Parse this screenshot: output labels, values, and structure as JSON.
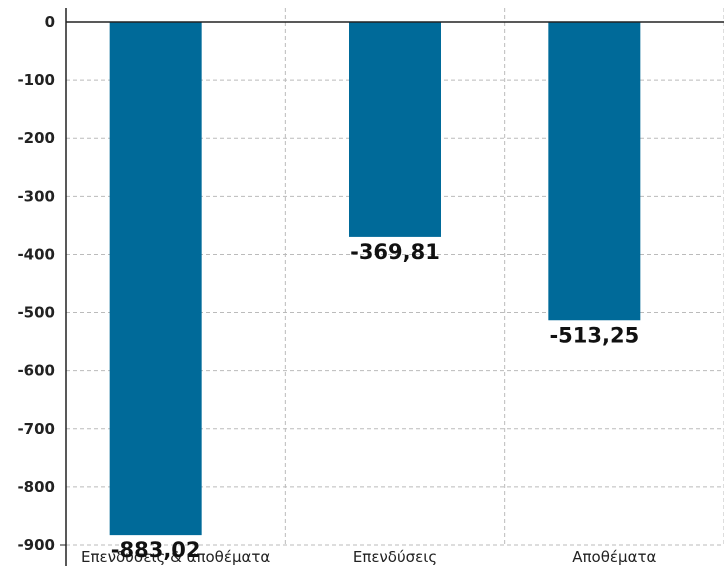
{
  "chart_data": {
    "type": "bar",
    "categories": [
      "Επενδύσεις & αποθέματα",
      "Επενδύσεις",
      "Αποθέματα"
    ],
    "values": [
      -883.02,
      -369.81,
      -513.25
    ],
    "data_labels": [
      "-883,02",
      "-369,81",
      "-513,25"
    ],
    "ylim": [
      -900,
      0
    ],
    "yticks": [
      0,
      -100,
      -200,
      -300,
      -400,
      -500,
      -600,
      -700,
      -800,
      -900
    ],
    "ytick_labels": [
      "0",
      "-100",
      "-200",
      "-300",
      "-400",
      "-500",
      "-600",
      "-700",
      "-800",
      "-900"
    ],
    "grid": true,
    "bar_color": "#006a99",
    "title": "",
    "xlabel": "",
    "ylabel": ""
  }
}
